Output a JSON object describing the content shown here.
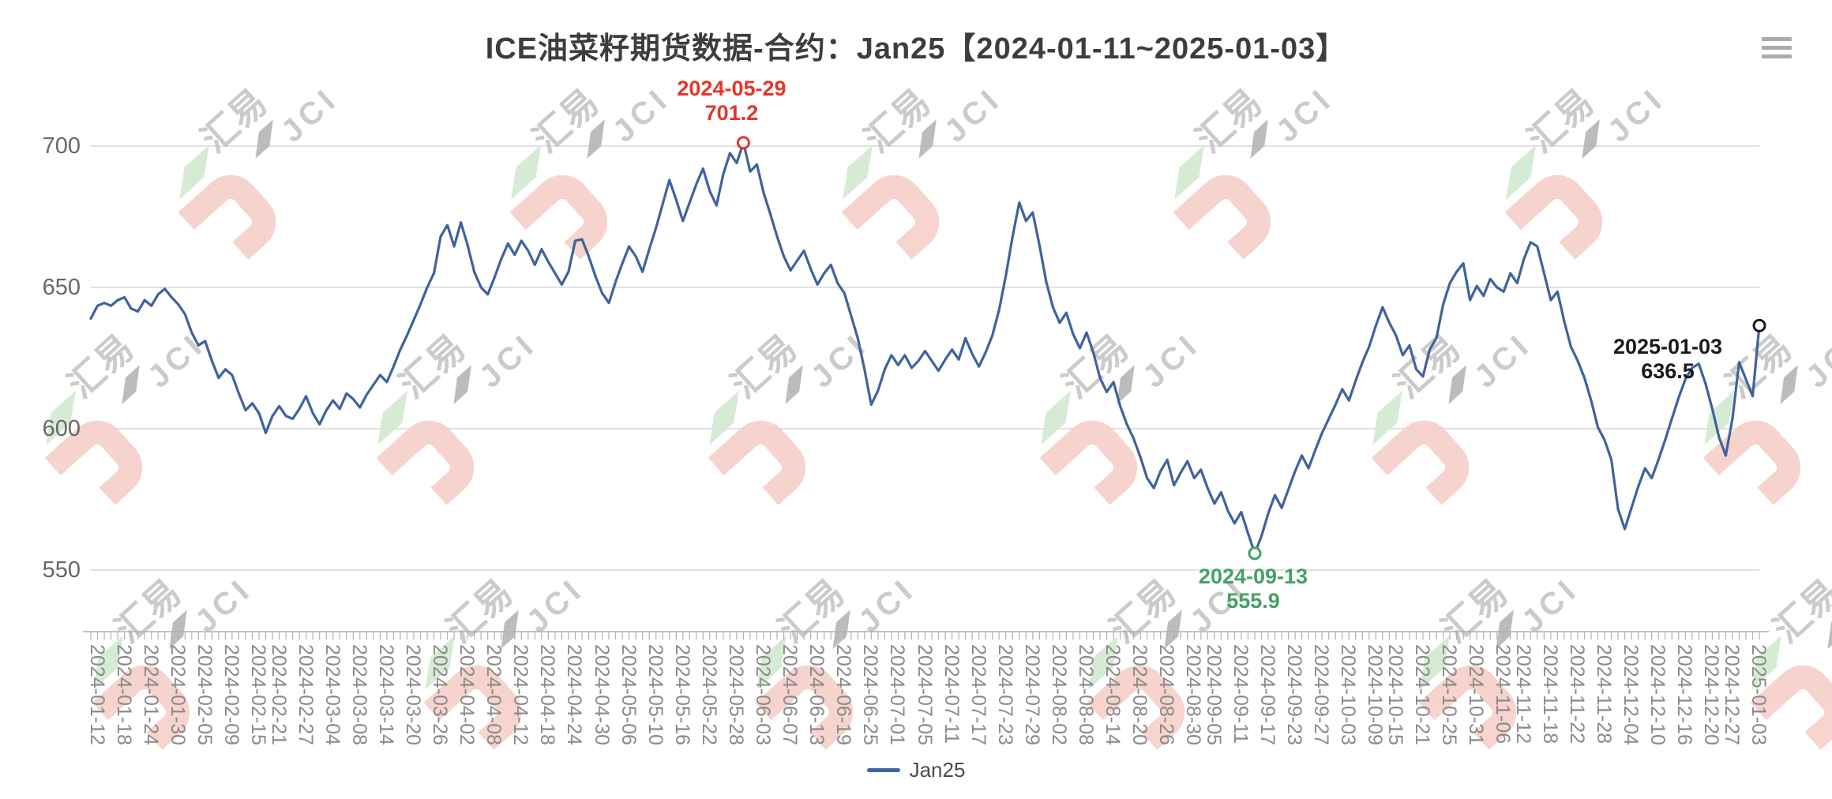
{
  "header": {
    "title": "ICE油菜籽期货数据-合约：Jan25【2024-01-11~2025-01-03】"
  },
  "toolbox": {
    "menu_icon": "hamburger-menu"
  },
  "legend": {
    "items": [
      {
        "label": "Jan25",
        "color": "#3e639e"
      }
    ]
  },
  "watermark": {
    "line1": "汇易",
    "line2": "JCI"
  },
  "colors": {
    "line": "#3e639e",
    "grid": "#cfcfcf",
    "axis": "#b0b0b0",
    "max_annotation": "#e5352b",
    "min_annotation": "#45a164",
    "end_annotation": "#1a1a1a",
    "title": "#3d3d3d",
    "x_label": "#8a8a8a",
    "y_label": "#676767",
    "watermark_pink": "#f6cfc8",
    "watermark_green": "#d2e9cf",
    "watermark_gray": "#c6c6c6"
  },
  "chart_data": {
    "type": "line",
    "title": "ICE油菜籽期货数据-合约：Jan25【2024-01-11~2025-01-03】",
    "xlabel": "",
    "ylabel": "",
    "yticks": [
      550,
      600,
      650,
      700
    ],
    "ylim": [
      528,
      713
    ],
    "grid": true,
    "legend_position": "bottom",
    "x_tick_labels": [
      "2024-01-12",
      "2024-01-18",
      "2024-01-24",
      "2024-01-30",
      "2024-02-05",
      "2024-02-09",
      "2024-02-15",
      "2024-02-21",
      "2024-02-27",
      "2024-03-04",
      "2024-03-08",
      "2024-03-14",
      "2024-03-20",
      "2024-03-26",
      "2024-04-02",
      "2024-04-08",
      "2024-04-12",
      "2024-04-18",
      "2024-04-24",
      "2024-04-30",
      "2024-05-06",
      "2024-05-10",
      "2024-05-16",
      "2024-05-22",
      "2024-05-28",
      "2024-06-03",
      "2024-06-07",
      "2024-06-13",
      "2024-06-19",
      "2024-06-25",
      "2024-07-01",
      "2024-07-05",
      "2024-07-11",
      "2024-07-17",
      "2024-07-23",
      "2024-07-29",
      "2024-08-02",
      "2024-08-08",
      "2024-08-14",
      "2024-08-20",
      "2024-08-26",
      "2024-08-30",
      "2024-09-05",
      "2024-09-11",
      "2024-09-17",
      "2024-09-23",
      "2024-09-27",
      "2024-10-03",
      "2024-10-09",
      "2024-10-15",
      "2024-10-21",
      "2024-10-25",
      "2024-10-31",
      "2024-11-06",
      "2024-11-12",
      "2024-11-18",
      "2024-11-22",
      "2024-11-28",
      "2024-12-04",
      "2024-12-10",
      "2024-12-16",
      "2024-12-20",
      "2024-12-27",
      "2025-01-03"
    ],
    "annotations": {
      "max": {
        "date": "2024-05-29",
        "value": 701.2,
        "label_value": "701.2"
      },
      "min": {
        "date": "2024-09-13",
        "value": 555.9,
        "label_value": "555.9"
      },
      "last": {
        "date": "2025-01-03",
        "value": 636.5,
        "label_value": "636.5"
      }
    },
    "series": [
      {
        "name": "Jan25",
        "color": "#3e639e",
        "points": [
          [
            "2024-01-11",
            639
          ],
          [
            "2024-01-12",
            643.5
          ],
          [
            "2024-01-15",
            644.5
          ],
          [
            "2024-01-16",
            643.5
          ],
          [
            "2024-01-17",
            645.5
          ],
          [
            "2024-01-18",
            646.5
          ],
          [
            "2024-01-19",
            642.5
          ],
          [
            "2024-01-22",
            641.5
          ],
          [
            "2024-01-23",
            645.5
          ],
          [
            "2024-01-24",
            643.5
          ],
          [
            "2024-01-25",
            647.5
          ],
          [
            "2024-01-26",
            649.5
          ],
          [
            "2024-01-29",
            646.5
          ],
          [
            "2024-01-30",
            644
          ],
          [
            "2024-01-31",
            640.5
          ],
          [
            "2024-02-01",
            634
          ],
          [
            "2024-02-02",
            629.5
          ],
          [
            "2024-02-05",
            631
          ],
          [
            "2024-02-06",
            624
          ],
          [
            "2024-02-07",
            618
          ],
          [
            "2024-02-08",
            621
          ],
          [
            "2024-02-09",
            619
          ],
          [
            "2024-02-12",
            612.5
          ],
          [
            "2024-02-13",
            606.5
          ],
          [
            "2024-02-14",
            609
          ],
          [
            "2024-02-15",
            605.5
          ],
          [
            "2024-02-16",
            598.5
          ],
          [
            "2024-02-20",
            604.5
          ],
          [
            "2024-02-21",
            608
          ],
          [
            "2024-02-22",
            604.5
          ],
          [
            "2024-02-23",
            603.5
          ],
          [
            "2024-02-26",
            607
          ],
          [
            "2024-02-27",
            611.5
          ],
          [
            "2024-02-28",
            605.5
          ],
          [
            "2024-02-29",
            601.5
          ],
          [
            "2024-03-01",
            606.5
          ],
          [
            "2024-03-04",
            610
          ],
          [
            "2024-03-05",
            607
          ],
          [
            "2024-03-06",
            612.5
          ],
          [
            "2024-03-07",
            610.5
          ],
          [
            "2024-03-08",
            607.5
          ],
          [
            "2024-03-11",
            612
          ],
          [
            "2024-03-12",
            615.5
          ],
          [
            "2024-03-13",
            619
          ],
          [
            "2024-03-14",
            616.5
          ],
          [
            "2024-03-15",
            622
          ],
          [
            "2024-03-18",
            628
          ],
          [
            "2024-03-19",
            633
          ],
          [
            "2024-03-20",
            638.5
          ],
          [
            "2024-03-21",
            644
          ],
          [
            "2024-03-22",
            650
          ],
          [
            "2024-03-25",
            655
          ],
          [
            "2024-03-26",
            668
          ],
          [
            "2024-03-27",
            672
          ],
          [
            "2024-03-28",
            664.5
          ],
          [
            "2024-04-01",
            673
          ],
          [
            "2024-04-02",
            665
          ],
          [
            "2024-04-03",
            655.5
          ],
          [
            "2024-04-04",
            650
          ],
          [
            "2024-04-05",
            647.5
          ],
          [
            "2024-04-08",
            653.5
          ],
          [
            "2024-04-09",
            660
          ],
          [
            "2024-04-10",
            665.5
          ],
          [
            "2024-04-11",
            661.5
          ],
          [
            "2024-04-12",
            666.5
          ],
          [
            "2024-04-15",
            663
          ],
          [
            "2024-04-16",
            658
          ],
          [
            "2024-04-17",
            663.5
          ],
          [
            "2024-04-18",
            659
          ],
          [
            "2024-04-19",
            655
          ],
          [
            "2024-04-22",
            651
          ],
          [
            "2024-04-23",
            655.5
          ],
          [
            "2024-04-24",
            666.5
          ],
          [
            "2024-04-25",
            667
          ],
          [
            "2024-04-26",
            661
          ],
          [
            "2024-04-29",
            654
          ],
          [
            "2024-04-30",
            648
          ],
          [
            "2024-05-01",
            644.5
          ],
          [
            "2024-05-02",
            652
          ],
          [
            "2024-05-03",
            658.5
          ],
          [
            "2024-05-06",
            664.5
          ],
          [
            "2024-05-07",
            661
          ],
          [
            "2024-05-08",
            655.5
          ],
          [
            "2024-05-09",
            663.5
          ],
          [
            "2024-05-10",
            671
          ],
          [
            "2024-05-13",
            679.5
          ],
          [
            "2024-05-14",
            688
          ],
          [
            "2024-05-15",
            681
          ],
          [
            "2024-05-16",
            673.5
          ],
          [
            "2024-05-17",
            680
          ],
          [
            "2024-05-20",
            686.5
          ],
          [
            "2024-05-21",
            692
          ],
          [
            "2024-05-22",
            684
          ],
          [
            "2024-05-23",
            679
          ],
          [
            "2024-05-24",
            690
          ],
          [
            "2024-05-27",
            697.5
          ],
          [
            "2024-05-28",
            694
          ],
          [
            "2024-05-29",
            701.2
          ],
          [
            "2024-05-30",
            691
          ],
          [
            "2024-05-31",
            693.5
          ],
          [
            "2024-06-03",
            683.5
          ],
          [
            "2024-06-04",
            676
          ],
          [
            "2024-06-05",
            668
          ],
          [
            "2024-06-06",
            661
          ],
          [
            "2024-06-07",
            656
          ],
          [
            "2024-06-10",
            659.5
          ],
          [
            "2024-06-11",
            663
          ],
          [
            "2024-06-12",
            656.5
          ],
          [
            "2024-06-13",
            651
          ],
          [
            "2024-06-14",
            655
          ],
          [
            "2024-06-17",
            658
          ],
          [
            "2024-06-18",
            651.5
          ],
          [
            "2024-06-19",
            648
          ],
          [
            "2024-06-20",
            640
          ],
          [
            "2024-06-21",
            632
          ],
          [
            "2024-06-24",
            621
          ],
          [
            "2024-06-25",
            608.5
          ],
          [
            "2024-06-26",
            613.5
          ],
          [
            "2024-06-27",
            621
          ],
          [
            "2024-06-28",
            626
          ],
          [
            "2024-07-01",
            622.5
          ],
          [
            "2024-07-02",
            626
          ],
          [
            "2024-07-03",
            621.5
          ],
          [
            "2024-07-04",
            624
          ],
          [
            "2024-07-05",
            627.5
          ],
          [
            "2024-07-08",
            624
          ],
          [
            "2024-07-09",
            620.5
          ],
          [
            "2024-07-10",
            624.5
          ],
          [
            "2024-07-11",
            628
          ],
          [
            "2024-07-12",
            624.5
          ],
          [
            "2024-07-15",
            632
          ],
          [
            "2024-07-16",
            626.5
          ],
          [
            "2024-07-17",
            622
          ],
          [
            "2024-07-18",
            627
          ],
          [
            "2024-07-19",
            633
          ],
          [
            "2024-07-22",
            642
          ],
          [
            "2024-07-23",
            654
          ],
          [
            "2024-07-24",
            668
          ],
          [
            "2024-07-25",
            680
          ],
          [
            "2024-07-26",
            673.5
          ],
          [
            "2024-07-29",
            676.5
          ],
          [
            "2024-07-30",
            665
          ],
          [
            "2024-07-31",
            652
          ],
          [
            "2024-08-01",
            643
          ],
          [
            "2024-08-02",
            637.5
          ],
          [
            "2024-08-05",
            641
          ],
          [
            "2024-08-06",
            633.5
          ],
          [
            "2024-08-07",
            628.5
          ],
          [
            "2024-08-08",
            634
          ],
          [
            "2024-08-09",
            627
          ],
          [
            "2024-08-12",
            618
          ],
          [
            "2024-08-13",
            613
          ],
          [
            "2024-08-14",
            616.5
          ],
          [
            "2024-08-15",
            608
          ],
          [
            "2024-08-16",
            601.5
          ],
          [
            "2024-08-19",
            596.5
          ],
          [
            "2024-08-20",
            590
          ],
          [
            "2024-08-21",
            582.5
          ],
          [
            "2024-08-22",
            579
          ],
          [
            "2024-08-23",
            585
          ],
          [
            "2024-08-26",
            589
          ],
          [
            "2024-08-27",
            580
          ],
          [
            "2024-08-28",
            584.5
          ],
          [
            "2024-08-29",
            588.5
          ],
          [
            "2024-08-30",
            582.5
          ],
          [
            "2024-09-03",
            585.5
          ],
          [
            "2024-09-04",
            579
          ],
          [
            "2024-09-05",
            573.5
          ],
          [
            "2024-09-06",
            577.5
          ],
          [
            "2024-09-09",
            571
          ],
          [
            "2024-09-10",
            566.5
          ],
          [
            "2024-09-11",
            570.5
          ],
          [
            "2024-09-12",
            563
          ],
          [
            "2024-09-13",
            555.9
          ],
          [
            "2024-09-16",
            562
          ],
          [
            "2024-09-17",
            570
          ],
          [
            "2024-09-18",
            576.5
          ],
          [
            "2024-09-19",
            572
          ],
          [
            "2024-09-20",
            578.5
          ],
          [
            "2024-09-23",
            585
          ],
          [
            "2024-09-24",
            590.5
          ],
          [
            "2024-09-25",
            586
          ],
          [
            "2024-09-26",
            592.5
          ],
          [
            "2024-09-27",
            598.5
          ],
          [
            "2024-09-30",
            603.5
          ],
          [
            "2024-10-01",
            608.5
          ],
          [
            "2024-10-02",
            614
          ],
          [
            "2024-10-03",
            610
          ],
          [
            "2024-10-04",
            617
          ],
          [
            "2024-10-07",
            623.5
          ],
          [
            "2024-10-08",
            629
          ],
          [
            "2024-10-09",
            636.5
          ],
          [
            "2024-10-10",
            643
          ],
          [
            "2024-10-11",
            637.5
          ],
          [
            "2024-10-15",
            633
          ],
          [
            "2024-10-16",
            626
          ],
          [
            "2024-10-17",
            629.5
          ],
          [
            "2024-10-18",
            621
          ],
          [
            "2024-10-21",
            618.5
          ],
          [
            "2024-10-22",
            628
          ],
          [
            "2024-10-23",
            632
          ],
          [
            "2024-10-24",
            644
          ],
          [
            "2024-10-25",
            651.5
          ],
          [
            "2024-10-28",
            655.5
          ],
          [
            "2024-10-29",
            658.5
          ],
          [
            "2024-10-30",
            645.5
          ],
          [
            "2024-10-31",
            650.5
          ],
          [
            "2024-11-01",
            647
          ],
          [
            "2024-11-04",
            653
          ],
          [
            "2024-11-05",
            650
          ],
          [
            "2024-11-06",
            648.5
          ],
          [
            "2024-11-07",
            655
          ],
          [
            "2024-11-08",
            651.5
          ],
          [
            "2024-11-12",
            660
          ],
          [
            "2024-11-13",
            666
          ],
          [
            "2024-11-14",
            664.5
          ],
          [
            "2024-11-15",
            655
          ],
          [
            "2024-11-18",
            645.5
          ],
          [
            "2024-11-19",
            648.5
          ],
          [
            "2024-11-20",
            638
          ],
          [
            "2024-11-21",
            629
          ],
          [
            "2024-11-22",
            624
          ],
          [
            "2024-11-25",
            618
          ],
          [
            "2024-11-26",
            610
          ],
          [
            "2024-11-27",
            600.5
          ],
          [
            "2024-11-28",
            596
          ],
          [
            "2024-11-29",
            589
          ],
          [
            "2024-12-02",
            571.5
          ],
          [
            "2024-12-03",
            564.5
          ],
          [
            "2024-12-04",
            572
          ],
          [
            "2024-12-05",
            579.5
          ],
          [
            "2024-12-06",
            586
          ],
          [
            "2024-12-09",
            582.5
          ],
          [
            "2024-12-10",
            589
          ],
          [
            "2024-12-11",
            596
          ],
          [
            "2024-12-12",
            603.5
          ],
          [
            "2024-12-13",
            611
          ],
          [
            "2024-12-16",
            617.5
          ],
          [
            "2024-12-17",
            621.5
          ],
          [
            "2024-12-18",
            623
          ],
          [
            "2024-12-19",
            616
          ],
          [
            "2024-12-20",
            607
          ],
          [
            "2024-12-23",
            597
          ],
          [
            "2024-12-24",
            590.5
          ],
          [
            "2024-12-27",
            603.5
          ],
          [
            "2024-12-30",
            623.5
          ],
          [
            "2024-12-31",
            617.5
          ],
          [
            "2025-01-02",
            611.5
          ],
          [
            "2025-01-03",
            636.5
          ]
        ]
      }
    ]
  }
}
